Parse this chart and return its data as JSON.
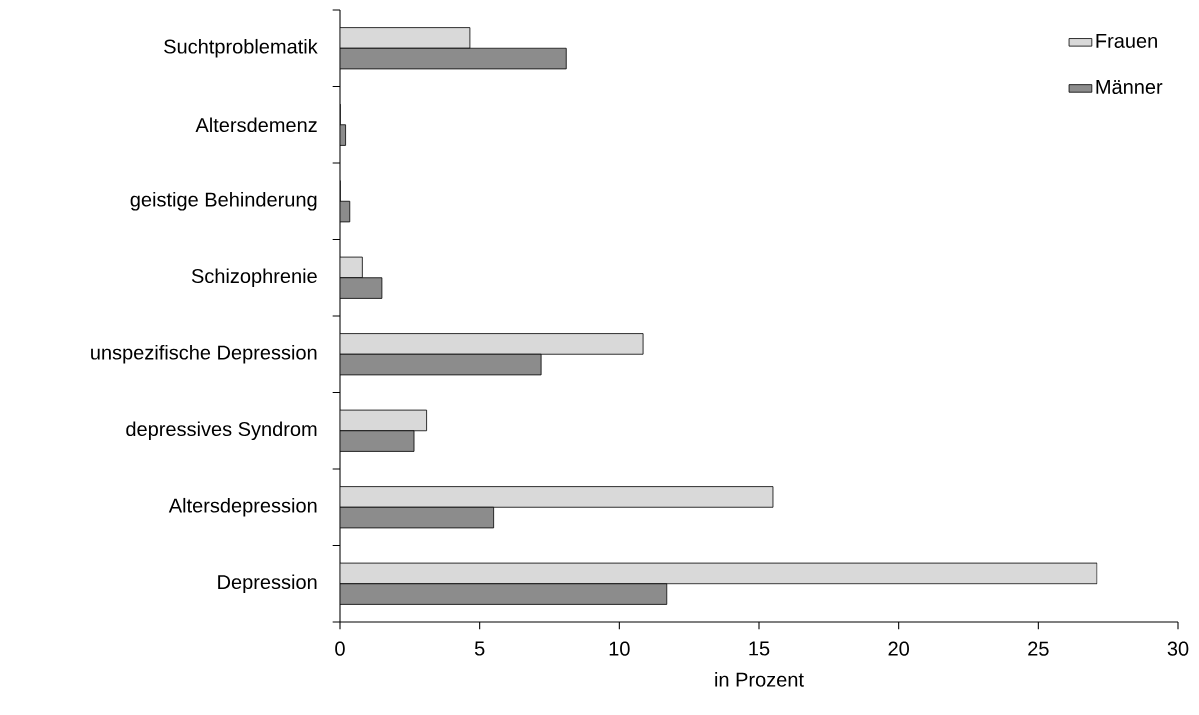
{
  "chart_data": {
    "type": "bar",
    "orientation": "horizontal",
    "xlabel": "in Prozent",
    "categories": [
      "Suchtproblematik",
      "Altersdemenz",
      "geistige Behinderung",
      "Schizophrenie",
      "unspezifische Depression",
      "depressives Syndrom",
      "Altersdepression",
      "Depression"
    ],
    "series": [
      {
        "name": "Frauen",
        "color": "#d9d9d9",
        "values": [
          4.65,
          0,
          0,
          0.8,
          10.85,
          3.1,
          15.5,
          27.1
        ]
      },
      {
        "name": "Männer",
        "color": "#8c8c8c",
        "values": [
          8.1,
          0.2,
          0.35,
          1.5,
          7.2,
          2.65,
          5.5,
          11.7
        ]
      }
    ],
    "xlim": [
      0,
      30
    ],
    "xticks": [
      0,
      5,
      10,
      15,
      20,
      25,
      30
    ],
    "legend": "top right",
    "grid": false
  }
}
